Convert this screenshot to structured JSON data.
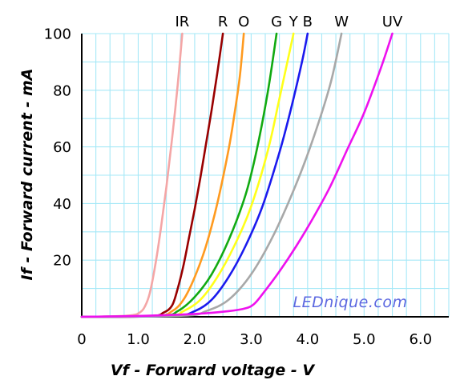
{
  "chart_data": {
    "type": "line",
    "title": "",
    "xlabel": "Vf - Forward voltage - V",
    "ylabel": "If - Forward current - mA",
    "xlim": [
      0,
      6.5
    ],
    "ylim": [
      0,
      100
    ],
    "xticks": [
      0,
      1.0,
      2.0,
      3.0,
      4.0,
      5.0,
      6.0
    ],
    "xtick_labels": [
      "0",
      "1.0",
      "2.0",
      "3.0",
      "4.0",
      "5.0",
      "6.0"
    ],
    "yticks": [
      20,
      40,
      60,
      80,
      100
    ],
    "ytick_labels": [
      "20",
      "40",
      "60",
      "80",
      "100"
    ],
    "grid": true,
    "legend": "labels-above-plot",
    "watermark": "LEDnique.com",
    "series": [
      {
        "name": "IR",
        "color": "#f4a6a6",
        "points": [
          [
            0,
            0
          ],
          [
            0.6,
            0.2
          ],
          [
            0.9,
            0.6
          ],
          [
            1.0,
            1.2
          ],
          [
            1.1,
            3
          ],
          [
            1.2,
            8
          ],
          [
            1.3,
            18
          ],
          [
            1.4,
            31
          ],
          [
            1.5,
            46
          ],
          [
            1.6,
            63
          ],
          [
            1.7,
            82
          ],
          [
            1.78,
            100
          ]
        ]
      },
      {
        "name": "R",
        "color": "#990000",
        "points": [
          [
            0,
            0
          ],
          [
            1.2,
            0.2
          ],
          [
            1.45,
            1.5
          ],
          [
            1.6,
            4
          ],
          [
            1.7,
            10
          ],
          [
            1.8,
            18
          ],
          [
            1.9,
            28
          ],
          [
            2.0,
            38
          ],
          [
            2.1,
            49
          ],
          [
            2.2,
            61
          ],
          [
            2.3,
            73
          ],
          [
            2.4,
            86
          ],
          [
            2.5,
            100
          ]
        ]
      },
      {
        "name": "O",
        "color": "#ff9a1f",
        "points": [
          [
            0,
            0
          ],
          [
            1.3,
            0.3
          ],
          [
            1.6,
            2
          ],
          [
            1.8,
            6
          ],
          [
            2.0,
            14
          ],
          [
            2.2,
            25
          ],
          [
            2.4,
            40
          ],
          [
            2.6,
            59
          ],
          [
            2.7,
            71
          ],
          [
            2.8,
            85
          ],
          [
            2.87,
            100
          ]
        ]
      },
      {
        "name": "G",
        "color": "#11aa11",
        "points": [
          [
            0,
            0
          ],
          [
            1.4,
            0.4
          ],
          [
            1.7,
            2
          ],
          [
            2.0,
            7
          ],
          [
            2.3,
            15
          ],
          [
            2.6,
            27
          ],
          [
            2.9,
            43
          ],
          [
            3.1,
            59
          ],
          [
            3.3,
            80
          ],
          [
            3.45,
            100
          ]
        ]
      },
      {
        "name": "Y",
        "color": "#ffff1a",
        "points": [
          [
            0,
            0
          ],
          [
            1.5,
            0.3
          ],
          [
            1.8,
            2
          ],
          [
            2.1,
            6
          ],
          [
            2.4,
            14
          ],
          [
            2.7,
            25
          ],
          [
            3.0,
            39
          ],
          [
            3.3,
            59
          ],
          [
            3.5,
            77
          ],
          [
            3.75,
            100
          ]
        ]
      },
      {
        "name": "B",
        "color": "#1a1aee",
        "points": [
          [
            0,
            0
          ],
          [
            1.6,
            0.3
          ],
          [
            2.0,
            2
          ],
          [
            2.3,
            6
          ],
          [
            2.6,
            14
          ],
          [
            2.9,
            25
          ],
          [
            3.2,
            39
          ],
          [
            3.5,
            58
          ],
          [
            3.7,
            73
          ],
          [
            3.9,
            90
          ],
          [
            4.0,
            100
          ]
        ]
      },
      {
        "name": "W",
        "color": "#a8a8a8",
        "points": [
          [
            0,
            0
          ],
          [
            1.8,
            0.4
          ],
          [
            2.2,
            2
          ],
          [
            2.6,
            6
          ],
          [
            3.0,
            15
          ],
          [
            3.4,
            29
          ],
          [
            3.8,
            47
          ],
          [
            4.1,
            63
          ],
          [
            4.4,
            82
          ],
          [
            4.6,
            100
          ]
        ]
      },
      {
        "name": "UV",
        "color": "#ee11ee",
        "points": [
          [
            0,
            0
          ],
          [
            1.0,
            0.3
          ],
          [
            2.0,
            1
          ],
          [
            2.6,
            2
          ],
          [
            2.9,
            3
          ],
          [
            3.05,
            4.5
          ],
          [
            3.2,
            8
          ],
          [
            3.5,
            16
          ],
          [
            3.8,
            25
          ],
          [
            4.1,
            35
          ],
          [
            4.4,
            46
          ],
          [
            4.7,
            59
          ],
          [
            5.0,
            72
          ],
          [
            5.3,
            88
          ],
          [
            5.5,
            100
          ]
        ]
      }
    ]
  }
}
